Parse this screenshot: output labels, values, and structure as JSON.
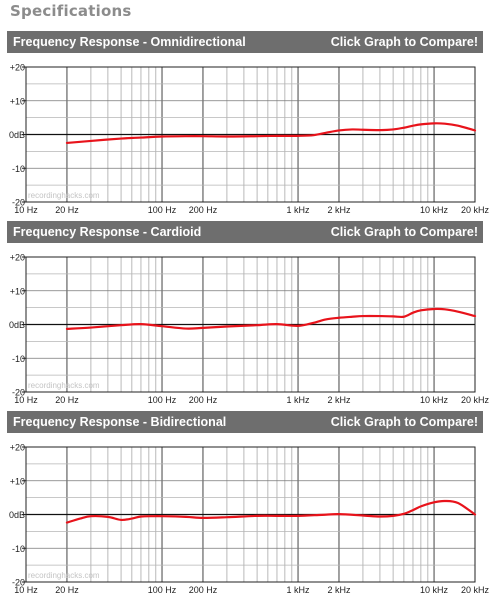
{
  "page": {
    "title": "Specifications"
  },
  "compare_label": "Click Graph to Compare!",
  "watermark": "recordinghacks.com",
  "axis": {
    "x_ticks": [
      {
        "v": 10,
        "label": "10 Hz"
      },
      {
        "v": 20,
        "label": "20 Hz"
      },
      {
        "v": 100,
        "label": "100 Hz"
      },
      {
        "v": 200,
        "label": "200 Hz"
      },
      {
        "v": 1000,
        "label": "1 kHz"
      },
      {
        "v": 2000,
        "label": "2 kHz"
      },
      {
        "v": 10000,
        "label": "10 kHz"
      },
      {
        "v": 20000,
        "label": "20 kHz"
      }
    ],
    "y_ticks": [
      {
        "v": 20,
        "label": "+20"
      },
      {
        "v": 10,
        "label": "+10"
      },
      {
        "v": 0,
        "label": "0dB"
      },
      {
        "v": -10,
        "label": "-10"
      },
      {
        "v": -20,
        "label": "-20"
      }
    ]
  },
  "chart_data": [
    {
      "type": "line",
      "title": "Frequency Response - Omnidirectional",
      "xscale": "log",
      "xlim": [
        10,
        20000
      ],
      "ylim": [
        -20,
        20
      ],
      "grid": true,
      "series": [
        {
          "color": "#e8131b",
          "x": [
            20,
            30,
            50,
            70,
            100,
            150,
            200,
            300,
            500,
            700,
            1000,
            1300,
            1600,
            2000,
            2500,
            3000,
            4000,
            5000,
            6000,
            7000,
            8000,
            10000,
            12000,
            15000,
            20000
          ],
          "y": [
            -2.5,
            -1.9,
            -1.2,
            -0.9,
            -0.6,
            -0.5,
            -0.5,
            -0.6,
            -0.5,
            -0.4,
            -0.4,
            -0.2,
            0.5,
            1.2,
            1.5,
            1.4,
            1.3,
            1.5,
            2.0,
            2.6,
            3.0,
            3.3,
            3.2,
            2.6,
            1.2
          ]
        }
      ]
    },
    {
      "type": "line",
      "title": "Frequency Response - Cardioid",
      "xscale": "log",
      "xlim": [
        10,
        20000
      ],
      "ylim": [
        -20,
        20
      ],
      "grid": true,
      "series": [
        {
          "color": "#e8131b",
          "x": [
            20,
            30,
            50,
            70,
            100,
            150,
            200,
            300,
            500,
            700,
            1000,
            1300,
            1600,
            2000,
            2500,
            3000,
            4000,
            5000,
            6000,
            7000,
            8000,
            10000,
            12000,
            15000,
            20000
          ],
          "y": [
            -1.3,
            -0.9,
            -0.2,
            0.1,
            -0.5,
            -1.2,
            -1.0,
            -0.6,
            -0.2,
            0.1,
            -0.4,
            0.5,
            1.5,
            2.0,
            2.3,
            2.5,
            2.5,
            2.4,
            2.3,
            3.5,
            4.2,
            4.6,
            4.5,
            3.8,
            2.5
          ]
        }
      ]
    },
    {
      "type": "line",
      "title": "Frequency Response - Bidirectional",
      "xscale": "log",
      "xlim": [
        10,
        20000
      ],
      "ylim": [
        -20,
        20
      ],
      "grid": true,
      "series": [
        {
          "color": "#e8131b",
          "x": [
            20,
            25,
            30,
            40,
            50,
            60,
            70,
            85,
            100,
            150,
            200,
            300,
            500,
            700,
            1000,
            1500,
            2000,
            3000,
            4000,
            5000,
            6000,
            7000,
            8000,
            10000,
            12000,
            15000,
            20000
          ],
          "y": [
            -2.4,
            -1.2,
            -0.5,
            -0.7,
            -1.6,
            -1.2,
            -0.6,
            -0.5,
            -0.5,
            -0.7,
            -1.0,
            -0.8,
            -0.4,
            -0.4,
            -0.4,
            -0.1,
            0.1,
            -0.3,
            -0.6,
            -0.4,
            0.2,
            1.3,
            2.4,
            3.6,
            4.0,
            3.4,
            0.0
          ]
        }
      ]
    }
  ]
}
